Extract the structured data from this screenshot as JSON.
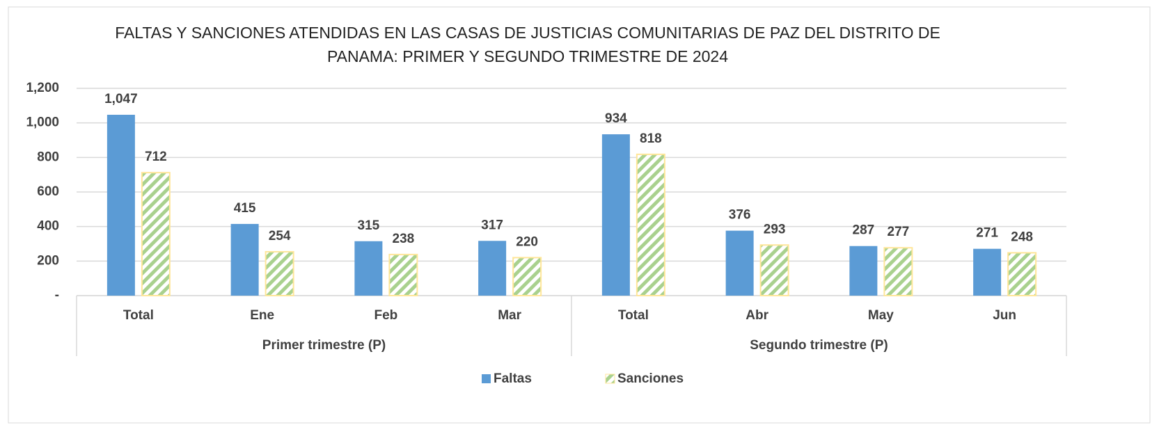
{
  "chart_data": {
    "type": "bar",
    "title": "FALTAS Y SANCIONES ATENDIDAS EN LAS CASAS DE JUSTICIAS COMUNITARIAS DE PAZ DEL DISTRITO DE PANAMA: PRIMER Y SEGUNDO TRIMESTRE DE 2024",
    "groups": [
      {
        "label": "Primer trimestre (P)",
        "categories": [
          "Total",
          "Ene",
          "Feb",
          "Mar"
        ]
      },
      {
        "label": "Segundo trimestre (P)",
        "categories": [
          "Total",
          "Abr",
          "May",
          "Jun"
        ]
      }
    ],
    "series": [
      {
        "name": "Faltas",
        "color": "#5b9bd5",
        "values": [
          1047,
          415,
          315,
          317,
          934,
          376,
          287,
          271
        ],
        "value_labels": [
          "1,047",
          "415",
          "315",
          "317",
          "934",
          "376",
          "287",
          "271"
        ]
      },
      {
        "name": "Sanciones",
        "color": "#a9d18e",
        "pattern": "diagonal-stripes",
        "values": [
          712,
          254,
          238,
          220,
          818,
          293,
          277,
          248
        ]
      }
    ],
    "ylim": [
      0,
      1200
    ],
    "yticks": [
      {
        "value": 0,
        "label": "-"
      },
      200,
      400,
      600,
      800,
      {
        "value": 1000,
        "label": "1,000"
      },
      {
        "value": 1200,
        "label": "1,200"
      }
    ],
    "grid": true,
    "legend": "bottom"
  }
}
